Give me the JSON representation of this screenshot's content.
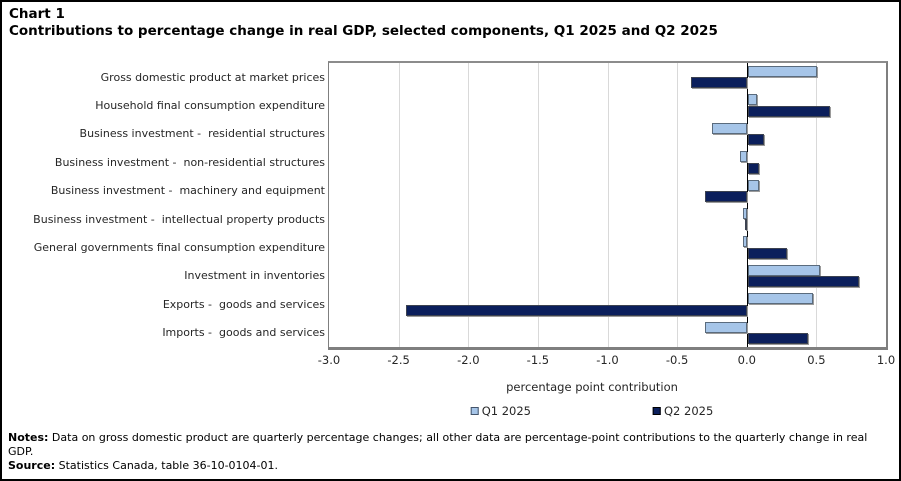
{
  "title": {
    "line1": "Chart 1",
    "line2": "Contributions to percentage change in real GDP, selected components, Q1 2025 and Q2 2025"
  },
  "chart_data": {
    "type": "bar",
    "orientation": "horizontal",
    "categories": [
      "Gross domestic product at market prices",
      "Household final consumption expenditure",
      "Business investment -  residential structures",
      "Business investment -  non-residential structures",
      "Business investment -  machinery and equipment",
      "Business investment -  intellectual property products",
      "General governments final consumption expenditure",
      "Investment in inventories",
      "Exports -  goods and services",
      "Imports -  goods and services"
    ],
    "series": [
      {
        "name": "Q1 2025",
        "color": "#a6c5e8",
        "values": [
          0.5,
          0.07,
          -0.25,
          -0.05,
          0.08,
          -0.03,
          -0.03,
          0.52,
          0.47,
          -0.3
        ]
      },
      {
        "name": "Q2 2025",
        "color": "#0b1f5c",
        "values": [
          -0.4,
          0.59,
          0.12,
          0.08,
          -0.3,
          -0.01,
          0.28,
          0.8,
          -2.45,
          0.43
        ]
      }
    ],
    "xlabel": "percentage point contribution",
    "xlim": [
      -3.0,
      1.0
    ],
    "xticks": [
      -3.0,
      -2.5,
      -2.0,
      -1.5,
      -1.0,
      -0.5,
      0.0,
      0.5,
      1.0
    ],
    "xtick_labels": [
      "-3.0",
      "-2.5",
      "-2.0",
      "-1.5",
      "-1.0",
      "-0.5",
      "0.0",
      "0.5",
      "1.0"
    ],
    "grid": true,
    "legend_position": "bottom",
    "zero_line_color": "#000000",
    "grid_color": "#d9d9d9"
  },
  "notes": {
    "label": "Notes:",
    "text": " Data on gross domestic product are quarterly percentage changes; all other data are percentage-point contributions to the quarterly change in real GDP."
  },
  "source": {
    "label": "Source:",
    "text": " Statistics Canada, table 36-10-0104-01."
  }
}
